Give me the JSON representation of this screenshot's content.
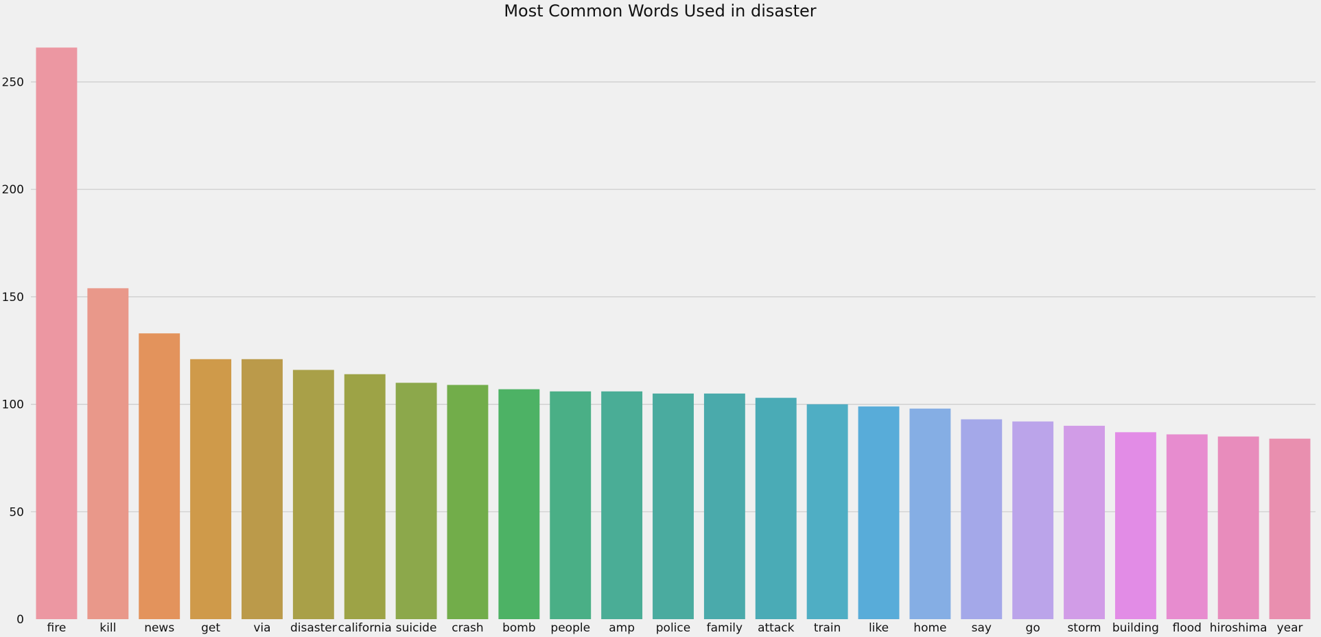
{
  "chart_data": {
    "type": "bar",
    "title": "Most Common Words Used in disaster",
    "xlabel": "",
    "ylabel": "",
    "categories": [
      "fire",
      "kill",
      "news",
      "get",
      "via",
      "disaster",
      "california",
      "suicide",
      "crash",
      "bomb",
      "people",
      "amp",
      "police",
      "family",
      "attack",
      "train",
      "like",
      "home",
      "say",
      "go",
      "storm",
      "building",
      "flood",
      "hiroshima",
      "year"
    ],
    "values": [
      266,
      154,
      133,
      121,
      121,
      116,
      114,
      110,
      109,
      107,
      106,
      106,
      105,
      105,
      103,
      100,
      99,
      98,
      93,
      92,
      90,
      87,
      86,
      85,
      84
    ],
    "colors": [
      "#ec97a2",
      "#e9988a",
      "#e3935c",
      "#cf9a4a",
      "#bb9a4a",
      "#a9a048",
      "#9da346",
      "#8ca84b",
      "#72ad4a",
      "#4db265",
      "#4aaf86",
      "#4aad96",
      "#4aab9f",
      "#4aaaab",
      "#4aabb6",
      "#4faec4",
      "#58acd9",
      "#85aee4",
      "#a4a8e9",
      "#bba4ea",
      "#d19ce7",
      "#e28ce6",
      "#e78ccf",
      "#e88cbc",
      "#e98faf"
    ],
    "y_ticks": [
      0,
      50,
      100,
      150,
      200,
      250
    ],
    "ylim": [
      0,
      271
    ],
    "grid": "horizontal",
    "legend": "none"
  }
}
